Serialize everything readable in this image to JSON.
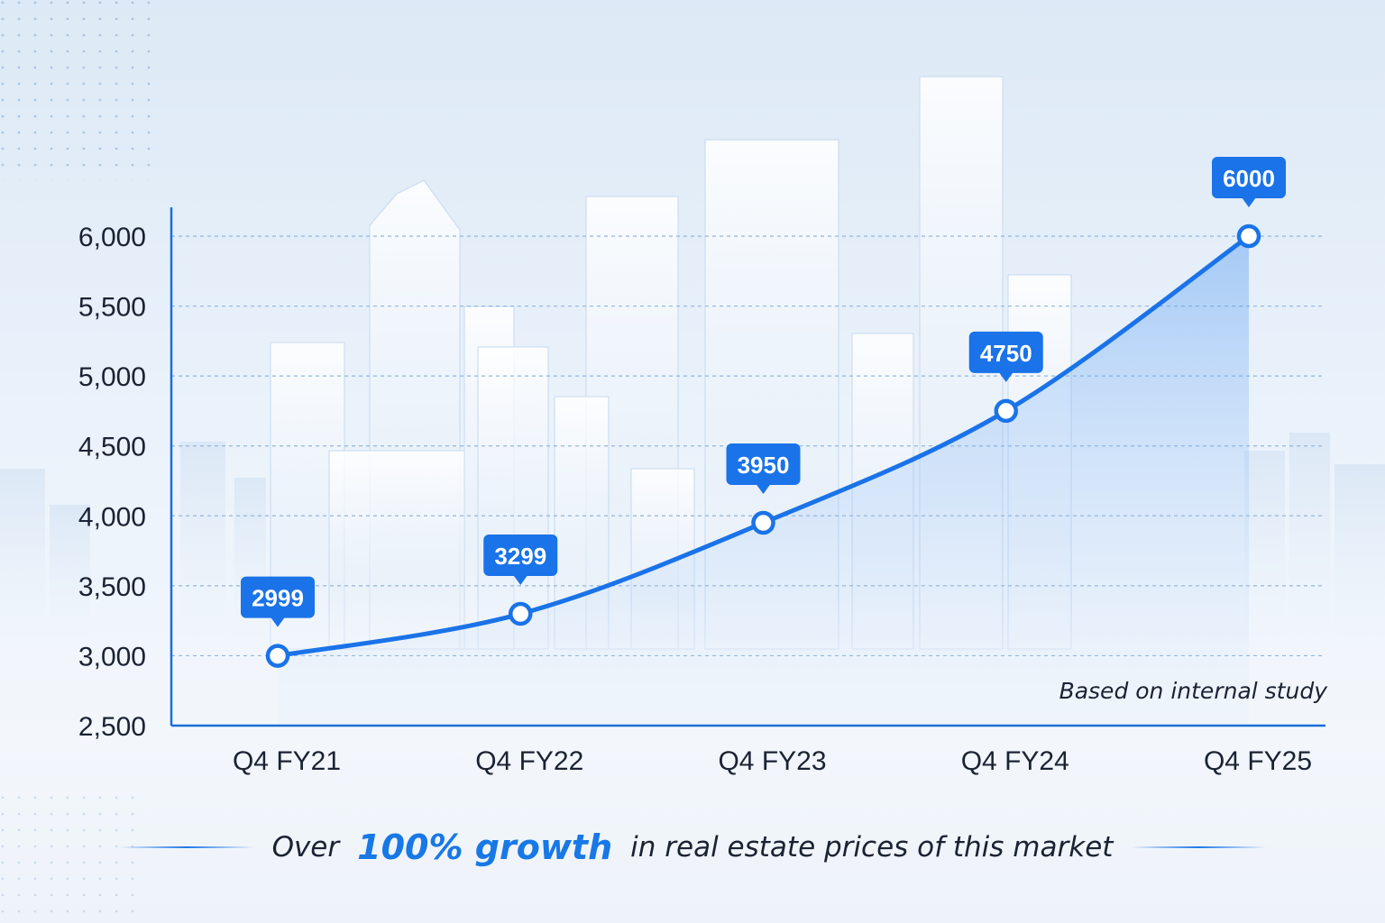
{
  "chart_data": {
    "type": "line",
    "categories": [
      "Q4 FY21",
      "Q4 FY22",
      "Q4 FY23",
      "Q4 FY24",
      "Q4 FY25"
    ],
    "series": [
      {
        "values": [
          2999,
          3299,
          3950,
          4750,
          6000
        ]
      }
    ],
    "data_labels": [
      "2999",
      "3299",
      "3950",
      "4750",
      "6000"
    ],
    "y_ticks": [
      2500,
      3000,
      3500,
      4000,
      4500,
      5000,
      5500,
      6000
    ],
    "y_tick_labels": [
      "2,500",
      "3,000",
      "3,500",
      "4,000",
      "4,500",
      "5,000",
      "5,500",
      "6,000"
    ],
    "ylim": [
      2500,
      6000
    ],
    "grid": true,
    "colors": {
      "line": "#1a73e8",
      "label_bg": "#1a73e8",
      "axis": "#1a6fd6",
      "grid": "#8fb6e0"
    }
  },
  "note": "Based on internal study",
  "caption": {
    "before": "Over",
    "emphasis": "100% growth",
    "after": "in real estate prices of this market"
  }
}
